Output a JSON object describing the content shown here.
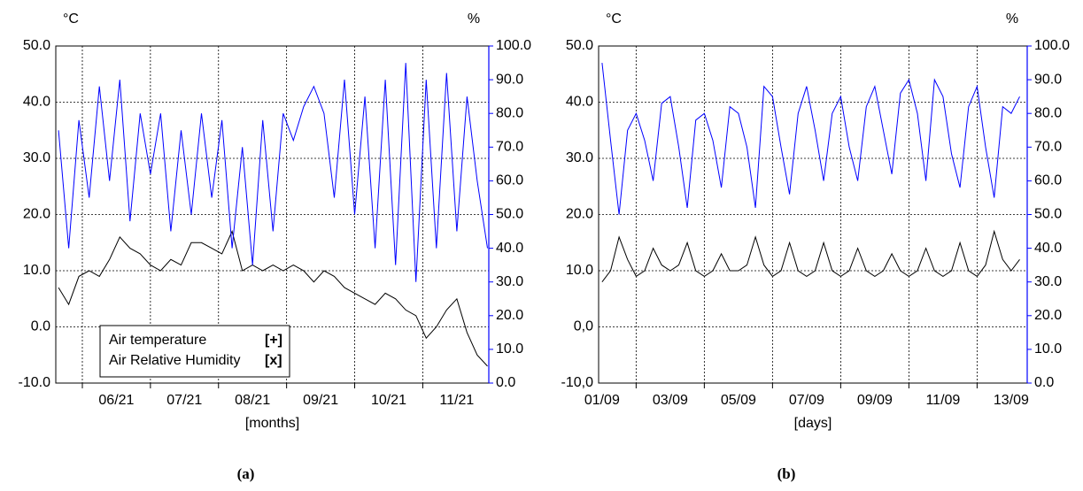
{
  "chart_data": [
    {
      "type": "line",
      "y_unit": "°C",
      "y2_unit": "%",
      "x_label": "[months]",
      "caption": "(a)",
      "legend": "lower left",
      "grid": true,
      "xlim": [
        -0.39,
        5.97
      ],
      "xticks": [
        {
          "value": 0.5,
          "label": "06/21"
        },
        {
          "value": 1.5,
          "label": "07/21"
        },
        {
          "value": 2.5,
          "label": "08/21"
        },
        {
          "value": 3.5,
          "label": "09/21"
        },
        {
          "value": 4.5,
          "label": "10/21"
        },
        {
          "value": 5.5,
          "label": "11/21"
        }
      ],
      "xgrid": [
        0,
        1,
        2,
        3,
        4,
        5
      ],
      "ylim": [
        -10,
        50
      ],
      "yticks": [
        {
          "value": -10,
          "label": "-10.0"
        },
        {
          "value": 0,
          "label": "0.0"
        },
        {
          "value": 10,
          "label": "10.0"
        },
        {
          "value": 20,
          "label": "20.0"
        },
        {
          "value": 30,
          "label": "30.0"
        },
        {
          "value": 40,
          "label": "40.0"
        },
        {
          "value": 50,
          "label": "50.0"
        }
      ],
      "y2lim": [
        0,
        100
      ],
      "y2ticks": [
        {
          "value": 0,
          "label": "0.0"
        },
        {
          "value": 10,
          "label": "10.0"
        },
        {
          "value": 20,
          "label": "20.0"
        },
        {
          "value": 30,
          "label": "30.0"
        },
        {
          "value": 40,
          "label": "40.0"
        },
        {
          "value": 50,
          "label": "50.0"
        },
        {
          "value": 60,
          "label": "60.0"
        },
        {
          "value": 70,
          "label": "70.0"
        },
        {
          "value": 80,
          "label": "80.0"
        },
        {
          "value": 90,
          "label": "90.0"
        },
        {
          "value": 100,
          "label": "100.0"
        }
      ],
      "x": [
        -0.35,
        -0.2,
        -0.05,
        0.1,
        0.25,
        0.4,
        0.55,
        0.7,
        0.85,
        1.0,
        1.15,
        1.3,
        1.45,
        1.6,
        1.75,
        1.9,
        2.05,
        2.2,
        2.35,
        2.5,
        2.65,
        2.8,
        2.95,
        3.1,
        3.25,
        3.4,
        3.55,
        3.7,
        3.85,
        4.0,
        4.15,
        4.3,
        4.45,
        4.6,
        4.75,
        4.9,
        5.05,
        5.2,
        5.35,
        5.5,
        5.65,
        5.8,
        5.95
      ],
      "series": [
        {
          "name": "Air temperature",
          "marker_label": "[+]",
          "color": "#000000",
          "axis": "y",
          "values": [
            7,
            4,
            9,
            10,
            9,
            12,
            16,
            14,
            13,
            11,
            10,
            12,
            11,
            15,
            15,
            14,
            13,
            17,
            10,
            11,
            10,
            11,
            10,
            11,
            10,
            8,
            10,
            9,
            7,
            6,
            5,
            4,
            6,
            5,
            3,
            2,
            -2,
            0,
            3,
            5,
            -1,
            -5,
            -7
          ]
        },
        {
          "name": "Air Relative Humidity",
          "marker_label": "[x]",
          "color": "#0000ff",
          "axis": "y2",
          "values": [
            75,
            40,
            78,
            55,
            88,
            60,
            90,
            48,
            80,
            62,
            80,
            45,
            75,
            50,
            80,
            55,
            78,
            40,
            70,
            35,
            78,
            45,
            80,
            72,
            82,
            88,
            80,
            55,
            90,
            50,
            85,
            40,
            90,
            35,
            95,
            30,
            90,
            40,
            92,
            45,
            85,
            60,
            40
          ]
        }
      ]
    },
    {
      "type": "line",
      "y_unit": "°C",
      "y2_unit": "%",
      "x_label": "[days]",
      "caption": "(b)",
      "grid": true,
      "xlim": [
        0.9,
        13.47
      ],
      "xticks": [
        {
          "value": 1,
          "label": "01/09"
        },
        {
          "value": 3,
          "label": "03/09"
        },
        {
          "value": 5,
          "label": "05/09"
        },
        {
          "value": 7,
          "label": "07/09"
        },
        {
          "value": 9,
          "label": "09/09"
        },
        {
          "value": 11,
          "label": "11/09"
        },
        {
          "value": 13,
          "label": "13/09"
        }
      ],
      "xgrid": [
        2,
        4,
        6,
        8,
        10,
        12
      ],
      "ylim": [
        -10,
        50
      ],
      "yticks": [
        {
          "value": -10,
          "label": "-10,0"
        },
        {
          "value": 0,
          "label": "0,0"
        },
        {
          "value": 10,
          "label": "10.0"
        },
        {
          "value": 20,
          "label": "20.0"
        },
        {
          "value": 30,
          "label": "30.0"
        },
        {
          "value": 40,
          "label": "40.0"
        },
        {
          "value": 50,
          "label": "50.0"
        }
      ],
      "y2lim": [
        0,
        100
      ],
      "y2ticks": [
        {
          "value": 0,
          "label": "0.0"
        },
        {
          "value": 10,
          "label": "10.0"
        },
        {
          "value": 20,
          "label": "20.0"
        },
        {
          "value": 30,
          "label": "30.0"
        },
        {
          "value": 40,
          "label": "40.0"
        },
        {
          "value": 50,
          "label": "50.0"
        },
        {
          "value": 60,
          "label": "60.0"
        },
        {
          "value": 70,
          "label": "70.0"
        },
        {
          "value": 80,
          "label": "80.0"
        },
        {
          "value": 90,
          "label": "90.0"
        },
        {
          "value": 100,
          "label": "100.0"
        }
      ],
      "x": [
        1,
        1.25,
        1.5,
        1.75,
        2,
        2.25,
        2.5,
        2.75,
        3,
        3.25,
        3.5,
        3.75,
        4,
        4.25,
        4.5,
        4.75,
        5,
        5.25,
        5.5,
        5.75,
        6,
        6.25,
        6.5,
        6.75,
        7,
        7.25,
        7.5,
        7.75,
        8,
        8.25,
        8.5,
        8.75,
        9,
        9.25,
        9.5,
        9.75,
        10,
        10.25,
        10.5,
        10.75,
        11,
        11.25,
        11.5,
        11.75,
        12,
        12.25,
        12.5,
        12.75,
        13,
        13.25
      ],
      "series": [
        {
          "name": "Air temperature",
          "color": "#000000",
          "axis": "y",
          "values": [
            8,
            10,
            16,
            12,
            9,
            10,
            14,
            11,
            10,
            11,
            15,
            10,
            9,
            10,
            13,
            10,
            10,
            11,
            16,
            11,
            9,
            10,
            15,
            10,
            9,
            10,
            15,
            10,
            9,
            10,
            14,
            10,
            9,
            10,
            13,
            10,
            9,
            10,
            14,
            10,
            9,
            10,
            15,
            10,
            9,
            11,
            17,
            12,
            10,
            12
          ]
        },
        {
          "name": "Air Relative Humidity",
          "color": "#0000ff",
          "axis": "y2",
          "values": [
            95,
            72,
            50,
            75,
            80,
            72,
            60,
            83,
            85,
            70,
            52,
            78,
            80,
            72,
            58,
            82,
            80,
            70,
            52,
            88,
            85,
            70,
            56,
            80,
            88,
            75,
            60,
            80,
            85,
            70,
            60,
            82,
            88,
            75,
            62,
            86,
            90,
            80,
            60,
            90,
            85,
            68,
            58,
            82,
            88,
            70,
            55,
            82,
            80,
            85
          ]
        }
      ]
    }
  ]
}
